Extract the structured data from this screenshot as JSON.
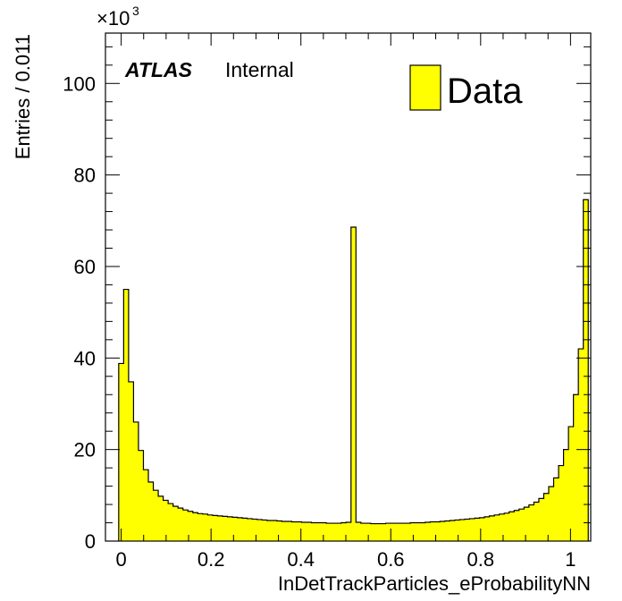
{
  "chart_data": {
    "type": "bar",
    "subtype": "histogram",
    "xlabel": "InDetTrackParticles_eProbabilityNN",
    "ylabel": "Entries / 0.011",
    "y_multiplier_base": "×10",
    "y_multiplier_exp": "3",
    "xlim": [
      -0.035,
      1.045
    ],
    "ylim": [
      0,
      111
    ],
    "x_ticks": [
      "0",
      "0.2",
      "0.4",
      "0.6",
      "0.8",
      "1"
    ],
    "y_ticks": [
      "0",
      "20",
      "40",
      "60",
      "80",
      "100"
    ],
    "bin_width": 0.011,
    "bin_start": -0.0055,
    "values": [
      38.8,
      55.0,
      34.8,
      26.0,
      19.8,
      15.6,
      12.9,
      11.1,
      9.8,
      8.9,
      8.2,
      7.6,
      7.2,
      6.8,
      6.5,
      6.2,
      6.0,
      5.9,
      5.7,
      5.6,
      5.5,
      5.4,
      5.3,
      5.2,
      5.1,
      5.0,
      4.9,
      4.8,
      4.7,
      4.6,
      4.5,
      4.5,
      4.4,
      4.3,
      4.3,
      4.2,
      4.2,
      4.1,
      4.1,
      4.0,
      4.0,
      4.0,
      3.9,
      3.9,
      3.9,
      4.0,
      4.1,
      68.6,
      4.1,
      3.9,
      3.9,
      3.8,
      3.8,
      3.8,
      3.9,
      3.9,
      3.9,
      3.9,
      3.9,
      4.0,
      4.0,
      4.0,
      4.1,
      4.2,
      4.2,
      4.3,
      4.4,
      4.5,
      4.6,
      4.7,
      4.8,
      4.9,
      5.0,
      5.1,
      5.3,
      5.5,
      5.7,
      5.9,
      6.1,
      6.4,
      6.7,
      7.0,
      7.4,
      7.9,
      8.5,
      9.3,
      10.4,
      11.9,
      13.8,
      16.5,
      20.0,
      25.0,
      32.0,
      42.0,
      74.6
    ],
    "series": [
      {
        "name": "Data",
        "color": "#ffff00"
      }
    ],
    "legend_position": "top-right",
    "grid": false
  },
  "atlas_label": "ATLAS",
  "atlas_status": "Internal",
  "colors": {
    "fill": "#ffff00",
    "line": "#000000"
  }
}
